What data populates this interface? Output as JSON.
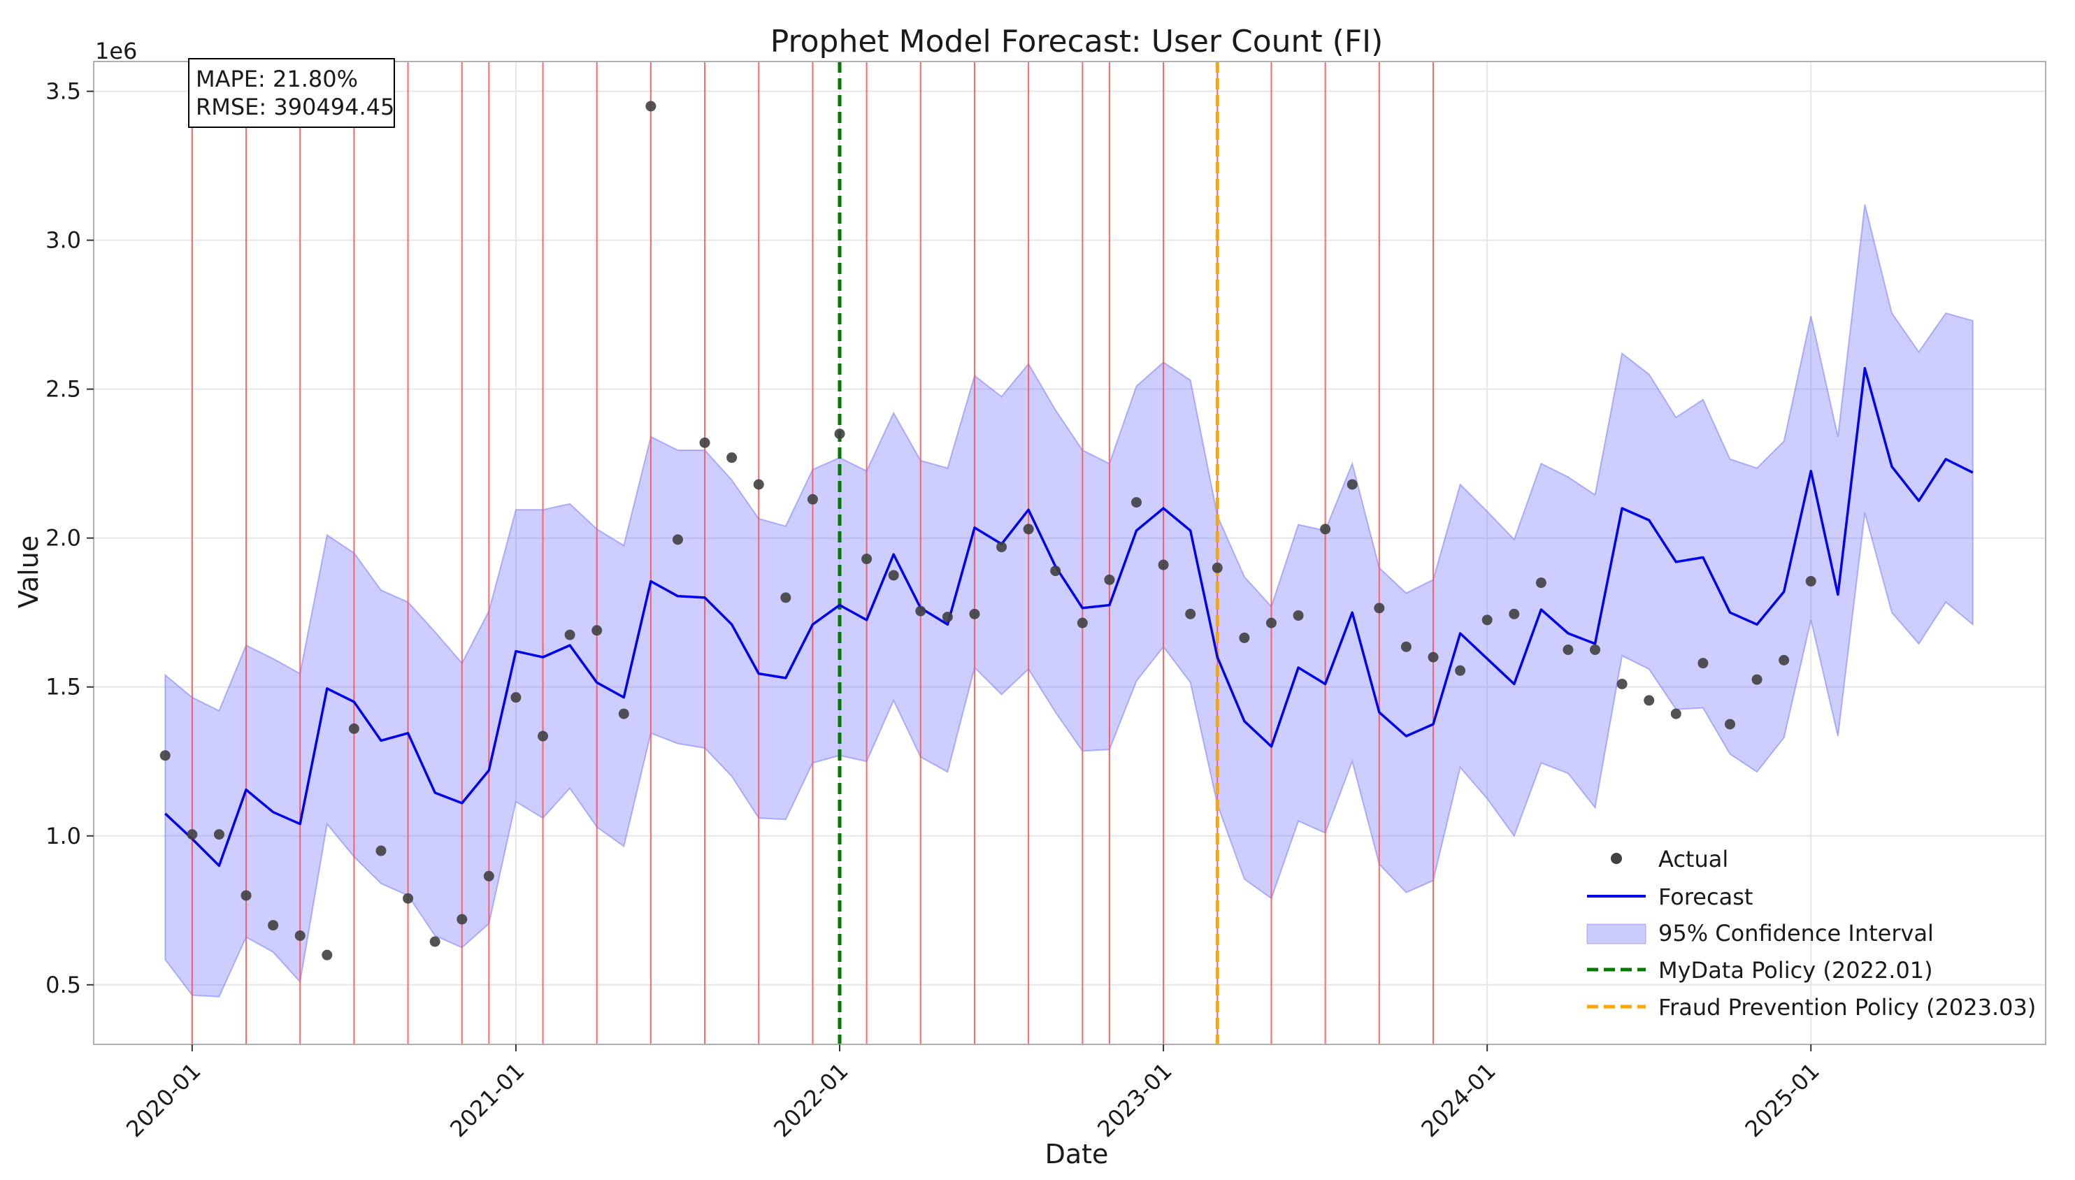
{
  "chart_data": {
    "type": "line",
    "title": "Prophet Model Forecast: User Count (FI)",
    "xlabel": "Date",
    "ylabel": "Value",
    "y_offset_label": "1e6",
    "ylim": [
      0.3,
      3.6
    ],
    "y_ticks": [
      0.5,
      1.0,
      1.5,
      2.0,
      2.5,
      3.0,
      3.5
    ],
    "y_tick_labels": [
      "0.5",
      "1.0",
      "1.5",
      "2.0",
      "2.5",
      "3.0",
      "3.5"
    ],
    "x_tick_labels": [
      "2020-01",
      "2021-01",
      "2022-01",
      "2023-01",
      "2024-01",
      "2025-01"
    ],
    "x_tick_positions": [
      1,
      13,
      25,
      37,
      49,
      61
    ],
    "xlim": [
      -2.65,
      69.7
    ],
    "dates": [
      "2019-12",
      "2020-01",
      "2020-02",
      "2020-03",
      "2020-04",
      "2020-05",
      "2020-06",
      "2020-07",
      "2020-08",
      "2020-09",
      "2020-10",
      "2020-11",
      "2020-12",
      "2021-01",
      "2021-02",
      "2021-03",
      "2021-04",
      "2021-05",
      "2021-06",
      "2021-07",
      "2021-08",
      "2021-09",
      "2021-10",
      "2021-11",
      "2021-12",
      "2022-01",
      "2022-02",
      "2022-03",
      "2022-04",
      "2022-05",
      "2022-06",
      "2022-07",
      "2022-08",
      "2022-09",
      "2022-10",
      "2022-11",
      "2022-12",
      "2023-01",
      "2023-02",
      "2023-03",
      "2023-04",
      "2023-05",
      "2023-06",
      "2023-07",
      "2023-08",
      "2023-09",
      "2023-10",
      "2023-11",
      "2023-12",
      "2024-01",
      "2024-02",
      "2024-03",
      "2024-04",
      "2024-05",
      "2024-06",
      "2024-07",
      "2024-08",
      "2024-09",
      "2024-10",
      "2024-11",
      "2024-12",
      "2025-01",
      "2025-02",
      "2025-03",
      "2025-04",
      "2025-05",
      "2025-06",
      "2025-07"
    ],
    "series": [
      {
        "name": "Actual",
        "type": "scatter",
        "color": "#404040",
        "values": [
          1.27,
          1.005,
          1.005,
          0.8,
          0.7,
          0.665,
          0.6,
          1.36,
          0.95,
          0.79,
          0.645,
          0.72,
          0.865,
          1.465,
          1.335,
          1.675,
          1.69,
          1.41,
          3.45,
          1.995,
          2.32,
          2.27,
          2.18,
          1.8,
          2.13,
          2.35,
          1.93,
          1.875,
          1.755,
          1.735,
          1.745,
          1.97,
          2.03,
          1.89,
          1.715,
          1.86,
          2.12,
          1.91,
          1.745,
          1.9,
          1.665,
          1.715,
          1.74,
          2.03,
          2.18,
          1.765,
          1.635,
          1.6,
          1.555,
          1.725,
          1.745,
          1.85,
          1.625,
          1.625,
          1.51,
          1.455,
          1.41,
          1.58,
          1.375,
          1.525,
          1.59,
          1.855
        ]
      },
      {
        "name": "Forecast",
        "type": "line",
        "color": "#0000ee",
        "values": [
          1.075,
          0.99,
          0.9,
          1.155,
          1.08,
          1.04,
          1.495,
          1.45,
          1.32,
          1.345,
          1.145,
          1.11,
          1.22,
          1.62,
          1.6,
          1.64,
          1.515,
          1.465,
          1.855,
          1.805,
          1.8,
          1.71,
          1.545,
          1.53,
          1.71,
          1.775,
          1.725,
          1.945,
          1.765,
          1.71,
          2.035,
          1.98,
          2.095,
          1.905,
          1.765,
          1.775,
          2.025,
          2.1,
          2.025,
          1.6,
          1.385,
          1.3,
          1.565,
          1.51,
          1.75,
          1.415,
          1.335,
          1.375,
          1.68,
          1.595,
          1.51,
          1.76,
          1.68,
          1.645,
          2.1,
          2.06,
          1.92,
          1.935,
          1.75,
          1.71,
          1.82,
          2.225,
          1.81,
          2.57,
          2.24,
          2.125,
          2.265,
          2.22
        ]
      }
    ],
    "ci": {
      "name": "95% Confidence Interval",
      "color": "#6666ff",
      "upper": [
        1.54,
        1.465,
        1.42,
        1.64,
        1.595,
        1.545,
        2.01,
        1.95,
        1.825,
        1.785,
        1.685,
        1.58,
        1.755,
        2.095,
        2.095,
        2.115,
        2.03,
        1.975,
        2.34,
        2.295,
        2.295,
        2.195,
        2.065,
        2.04,
        2.23,
        2.27,
        2.225,
        2.42,
        2.26,
        2.235,
        2.545,
        2.475,
        2.585,
        2.43,
        2.295,
        2.25,
        2.51,
        2.59,
        2.53,
        2.075,
        1.87,
        1.77,
        2.045,
        2.025,
        2.25,
        1.9,
        1.815,
        1.86,
        2.18,
        2.09,
        1.995,
        2.25,
        2.205,
        2.145,
        2.62,
        2.55,
        2.405,
        2.465,
        2.265,
        2.235,
        2.325,
        2.745,
        2.34,
        3.12,
        2.755,
        2.625,
        2.755,
        2.73
      ],
      "lower": [
        0.585,
        0.465,
        0.46,
        0.66,
        0.61,
        0.51,
        1.04,
        0.93,
        0.84,
        0.8,
        0.665,
        0.625,
        0.705,
        1.115,
        1.06,
        1.16,
        1.03,
        0.965,
        1.345,
        1.31,
        1.295,
        1.2,
        1.06,
        1.055,
        1.245,
        1.27,
        1.25,
        1.455,
        1.265,
        1.215,
        1.565,
        1.475,
        1.56,
        1.415,
        1.285,
        1.29,
        1.52,
        1.635,
        1.515,
        1.105,
        0.855,
        0.79,
        1.05,
        1.01,
        1.25,
        0.905,
        0.81,
        0.85,
        1.23,
        1.125,
        1.0,
        1.245,
        1.21,
        1.095,
        1.605,
        1.56,
        1.425,
        1.43,
        1.275,
        1.215,
        1.33,
        1.725,
        1.335,
        2.085,
        1.75,
        1.645,
        1.785,
        1.71
      ]
    },
    "event_lines": {
      "color": "#ff4d4d",
      "positions": [
        1,
        3,
        5,
        7,
        9,
        11,
        12,
        14,
        16,
        18,
        20,
        22,
        24,
        26,
        28,
        30,
        32,
        34,
        35,
        37,
        39,
        41,
        43,
        45,
        47
      ]
    },
    "policy_lines": [
      {
        "name": "MyData Policy (2022.01)",
        "position": 25,
        "color": "#007a00"
      },
      {
        "name": "Fraud Prevention Policy (2023.03)",
        "position": 39,
        "color": "#ffa500"
      }
    ],
    "legend": {
      "placement": "lower right",
      "entries": [
        "Actual",
        "Forecast",
        "95% Confidence Interval",
        "MyData Policy (2022.01)",
        "Fraud Prevention Policy (2023.03)"
      ]
    },
    "stats": {
      "mape": "MAPE: 21.80%",
      "rmse": "RMSE: 390494.45"
    },
    "grid": true
  }
}
